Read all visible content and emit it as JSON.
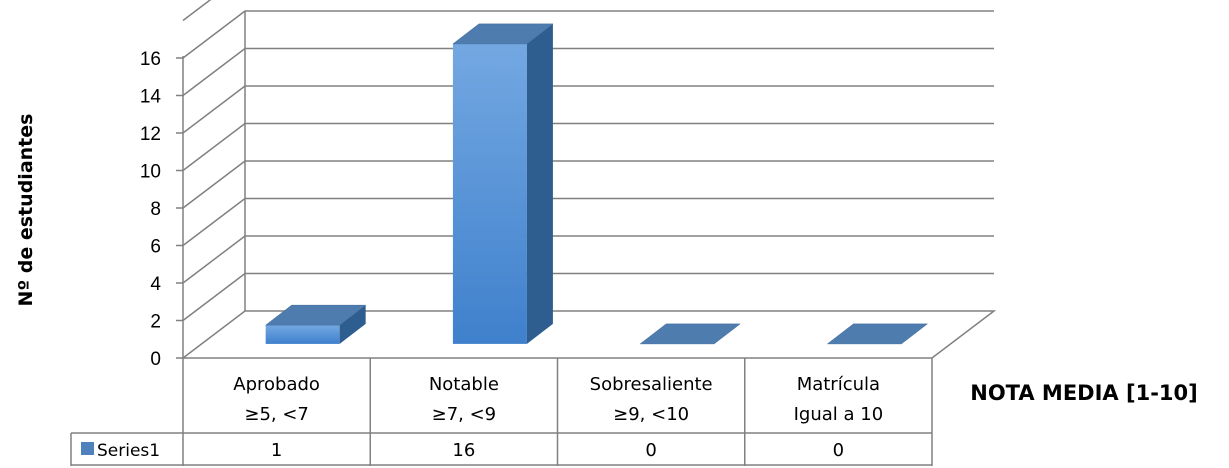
{
  "chart_data": {
    "type": "bar",
    "style": "3d-column",
    "ylabel": "Nº de estudiantes",
    "xlabel": "NOTA MEDIA [1-10]",
    "categories": [
      [
        "Aprobado",
        "≥5, <7"
      ],
      [
        "Notable",
        "≥7, <9"
      ],
      [
        "Sobresaliente",
        "≥9, <10"
      ],
      [
        "Matrícula",
        "Igual a 10"
      ]
    ],
    "series": [
      {
        "name": "Series1",
        "values": [
          1,
          16,
          0,
          0
        ],
        "color": "#4F81BD"
      }
    ],
    "ylim": [
      0,
      16
    ],
    "yticks": [
      0,
      2,
      4,
      6,
      8,
      10,
      12,
      14,
      16
    ],
    "grid": true,
    "data_table": true,
    "legend_position": "data-table-left"
  }
}
